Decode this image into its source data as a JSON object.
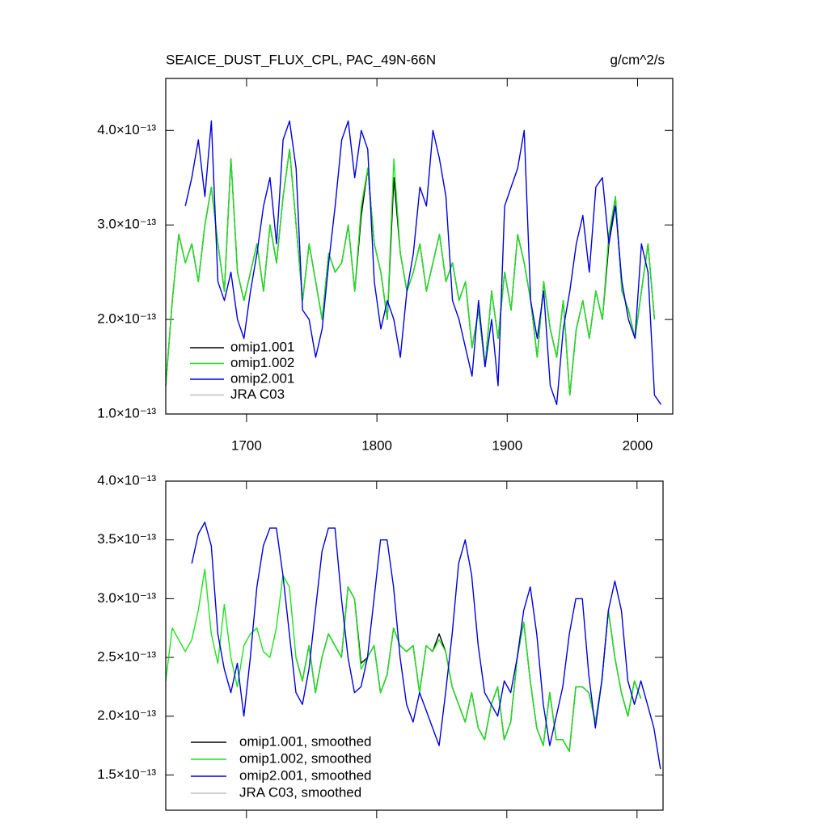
{
  "chart_data": [
    {
      "type": "line",
      "title": "SEAICE_DUST_FLUX_CPL, PAC_49N-66N",
      "units": "g/cm^2/s",
      "x": [
        1638,
        1643,
        1648,
        1653,
        1658,
        1663,
        1668,
        1673,
        1678,
        1683,
        1688,
        1693,
        1698,
        1703,
        1708,
        1713,
        1718,
        1723,
        1728,
        1733,
        1738,
        1743,
        1748,
        1753,
        1758,
        1763,
        1768,
        1773,
        1778,
        1783,
        1788,
        1793,
        1798,
        1803,
        1808,
        1813,
        1818,
        1823,
        1828,
        1833,
        1838,
        1843,
        1848,
        1853,
        1858,
        1863,
        1868,
        1873,
        1878,
        1883,
        1888,
        1893,
        1898,
        1903,
        1908,
        1913,
        1918,
        1923,
        1928,
        1933,
        1938,
        1943,
        1948,
        1953,
        1958,
        1963,
        1968,
        1973,
        1978,
        1983,
        1988,
        1993,
        1998,
        2003,
        2008,
        2013,
        2018
      ],
      "xlim": [
        1638,
        2027
      ],
      "xticks": [
        1700,
        1800,
        1900,
        2000
      ],
      "xtick_labels": true,
      "ylim": [
        1e-13,
        4.55e-13
      ],
      "yticks": [
        {
          "value": 1e-13,
          "label": "1.0×10⁻¹³"
        },
        {
          "value": 2e-13,
          "label": "2.0×10⁻¹³"
        },
        {
          "value": 3e-13,
          "label": "3.0×10⁻¹³"
        },
        {
          "value": 4e-13,
          "label": "4.0×10⁻¹³"
        }
      ],
      "legend": "lower left",
      "series": [
        {
          "name": "omip1.001",
          "color": "#000000",
          "values": [
            1.3e-13,
            2.2e-13,
            2.9e-13,
            2.6e-13,
            2.8e-13,
            2.4e-13,
            3e-13,
            3.4e-13,
            2.8e-13,
            2.3e-13,
            3.7e-13,
            2.5e-13,
            2.2e-13,
            2.5e-13,
            2.8e-13,
            2.3e-13,
            3e-13,
            2.6e-13,
            3.3e-13,
            3.8e-13,
            3e-13,
            2.2e-13,
            2.8e-13,
            2.4e-13,
            2e-13,
            2.7e-13,
            2.5e-13,
            2.6e-13,
            3e-13,
            2.3e-13,
            3.1e-13,
            3.6e-13,
            2.8e-13,
            2.5e-13,
            2e-13,
            3.5e-13,
            2.7e-13,
            2.3e-13,
            2.5e-13,
            2.8e-13,
            2.3e-13,
            2.6e-13,
            2.9e-13,
            2.4e-13,
            2.6e-13,
            2.2e-13,
            2.4e-13,
            1.7e-13,
            2.1e-13,
            1.5e-13,
            2.3e-13,
            1.8e-13,
            2.5e-13,
            2.1e-13,
            2.9e-13,
            2.6e-13,
            2.2e-13,
            1.6e-13,
            2.4e-13,
            1.9e-13,
            1.6e-13,
            2.2e-13,
            1.2e-13,
            1.9e-13,
            2.2e-13,
            1.8e-13,
            2.3e-13,
            2e-13,
            2.8e-13,
            3.3e-13,
            2.3e-13,
            2.1e-13,
            1.8e-13,
            2.3e-13,
            2.8e-13,
            2e-13,
            null
          ]
        },
        {
          "name": "omip1.002",
          "color": "#1ee31e",
          "values": [
            1.3e-13,
            2.2e-13,
            2.9e-13,
            2.6e-13,
            2.8e-13,
            2.4e-13,
            3e-13,
            3.4e-13,
            2.8e-13,
            2.3e-13,
            3.7e-13,
            2.5e-13,
            2.2e-13,
            2.5e-13,
            2.8e-13,
            2.3e-13,
            3e-13,
            2.6e-13,
            3.3e-13,
            3.8e-13,
            3e-13,
            2.2e-13,
            2.8e-13,
            2.4e-13,
            2e-13,
            2.7e-13,
            2.5e-13,
            2.6e-13,
            3e-13,
            2.3e-13,
            3.2e-13,
            3.6e-13,
            2.8e-13,
            2.5e-13,
            2e-13,
            3.7e-13,
            2.7e-13,
            2.3e-13,
            2.5e-13,
            2.8e-13,
            2.3e-13,
            2.6e-13,
            2.9e-13,
            2.4e-13,
            2.6e-13,
            2.2e-13,
            2.4e-13,
            1.7e-13,
            2.1e-13,
            1.5e-13,
            2.3e-13,
            1.8e-13,
            2.5e-13,
            2.1e-13,
            2.9e-13,
            2.6e-13,
            2.2e-13,
            1.6e-13,
            2.4e-13,
            1.9e-13,
            1.6e-13,
            2.2e-13,
            1.2e-13,
            1.9e-13,
            2.2e-13,
            1.8e-13,
            2.3e-13,
            2e-13,
            2.9e-13,
            3.3e-13,
            2.3e-13,
            2.1e-13,
            1.8e-13,
            2.3e-13,
            2.8e-13,
            2e-13,
            null
          ]
        },
        {
          "name": "omip2.001",
          "color": "#0000e0",
          "values": [
            null,
            null,
            null,
            3.2e-13,
            3.5e-13,
            3.9e-13,
            3.3e-13,
            4.1e-13,
            2.4e-13,
            2.2e-13,
            2.5e-13,
            2e-13,
            1.8e-13,
            2.3e-13,
            2.7e-13,
            3.2e-13,
            3.5e-13,
            2.8e-13,
            3.9e-13,
            4.1e-13,
            3.6e-13,
            2.1e-13,
            2e-13,
            1.6e-13,
            1.9e-13,
            2.6e-13,
            3.2e-13,
            3.9e-13,
            4.1e-13,
            3.5e-13,
            4e-13,
            3.8e-13,
            2.4e-13,
            1.9e-13,
            2.2e-13,
            2e-13,
            1.6e-13,
            2.3e-13,
            2.7e-13,
            3.4e-13,
            3.2e-13,
            4e-13,
            3.7e-13,
            3.3e-13,
            2.2e-13,
            2e-13,
            1.7e-13,
            1.4e-13,
            2.2e-13,
            1.5e-13,
            2e-13,
            1.3e-13,
            3.2e-13,
            3.4e-13,
            3.6e-13,
            4e-13,
            2.2e-13,
            1.8e-13,
            2.3e-13,
            1.3e-13,
            1.1e-13,
            1.9e-13,
            2.3e-13,
            2.8e-13,
            3.1e-13,
            2.5e-13,
            3.4e-13,
            3.5e-13,
            2.8e-13,
            3.2e-13,
            2.4e-13,
            2e-13,
            1.8e-13,
            2.8e-13,
            2.5e-13,
            1.2e-13,
            1.1e-13
          ]
        },
        {
          "name": "JRA C03",
          "color": "#c0c0c0",
          "values": [
            null,
            null,
            null,
            null,
            null,
            null,
            null,
            null,
            null,
            null,
            null,
            null,
            null,
            null,
            null,
            null,
            null,
            null,
            null,
            null,
            null,
            null,
            null,
            null,
            null,
            null,
            null,
            null,
            null,
            null,
            null,
            null,
            null,
            null,
            null,
            null,
            null,
            null,
            null,
            null,
            null,
            null,
            null,
            null,
            null,
            null,
            null,
            null,
            null,
            null,
            null,
            null,
            null,
            null,
            null,
            null,
            null,
            null,
            null,
            null,
            null,
            null,
            null,
            null,
            null,
            null,
            null,
            null,
            null,
            null,
            null,
            null,
            null,
            null,
            null,
            null,
            null
          ]
        }
      ]
    },
    {
      "type": "line",
      "x": [
        1638,
        1643,
        1648,
        1653,
        1658,
        1663,
        1668,
        1673,
        1678,
        1683,
        1688,
        1693,
        1698,
        1703,
        1708,
        1713,
        1718,
        1723,
        1728,
        1733,
        1738,
        1743,
        1748,
        1753,
        1758,
        1763,
        1768,
        1773,
        1778,
        1783,
        1788,
        1793,
        1798,
        1803,
        1808,
        1813,
        1818,
        1823,
        1828,
        1833,
        1838,
        1843,
        1848,
        1853,
        1858,
        1863,
        1868,
        1873,
        1878,
        1883,
        1888,
        1893,
        1898,
        1903,
        1908,
        1913,
        1918,
        1923,
        1928,
        1933,
        1938,
        1943,
        1948,
        1953,
        1958,
        1963,
        1968,
        1973,
        1978,
        1983,
        1988,
        1993,
        1998,
        2003,
        2008,
        2013,
        2018
      ],
      "xlim": [
        1638,
        2020
      ],
      "xticks": [
        1700,
        1800,
        1900,
        2000
      ],
      "xtick_labels": false,
      "ylim": [
        1.2e-13,
        4e-13
      ],
      "yticks": [
        {
          "value": 1.5e-13,
          "label": "1.5×10⁻¹³"
        },
        {
          "value": 2e-13,
          "label": "2.0×10⁻¹³"
        },
        {
          "value": 2.5e-13,
          "label": "2.5×10⁻¹³"
        },
        {
          "value": 3e-13,
          "label": "3.0×10⁻¹³"
        },
        {
          "value": 3.5e-13,
          "label": "3.5×10⁻¹³"
        },
        {
          "value": 4e-13,
          "label": "4.0×10⁻¹³"
        }
      ],
      "legend": "lower left",
      "series": [
        {
          "name": "omip1.001, smoothed",
          "color": "#000000",
          "values": [
            null,
            null,
            null,
            null,
            null,
            null,
            null,
            null,
            null,
            null,
            null,
            null,
            null,
            null,
            null,
            null,
            null,
            null,
            null,
            null,
            2.5e-13,
            2.3e-13,
            2.6e-13,
            2.2e-13,
            2.5e-13,
            2.7e-13,
            2.6e-13,
            2.5e-13,
            3.1e-13,
            3e-13,
            2.45e-13,
            2.5e-13,
            2.6e-13,
            2.2e-13,
            2.35e-13,
            2.75e-13,
            2.6e-13,
            2.55e-13,
            2.6e-13,
            2.2e-13,
            2.6e-13,
            2.55e-13,
            2.7e-13,
            2.55e-13,
            2.25e-13,
            2.1e-13,
            1.95e-13,
            2.2e-13,
            1.9e-13,
            1.8e-13,
            2.1e-13,
            2.25e-13,
            1.8e-13,
            1.95e-13,
            2.5e-13,
            2.8e-13,
            2.3e-13,
            1.9e-13,
            1.75e-13,
            2.2e-13,
            1.8e-13,
            1.8e-13,
            1.7e-13,
            2.25e-13,
            2.25e-13,
            2.2e-13,
            1.95e-13,
            2.3e-13,
            2.9e-13,
            2.5e-13,
            2.2e-13,
            2e-13,
            2.3e-13,
            2.15e-13,
            null,
            null,
            null
          ]
        },
        {
          "name": "omip1.002, smoothed",
          "color": "#1ee31e",
          "values": [
            2.3e-13,
            2.75e-13,
            2.65e-13,
            2.55e-13,
            2.65e-13,
            2.9e-13,
            3.25e-13,
            2.7e-13,
            2.45e-13,
            2.95e-13,
            2.5e-13,
            2.25e-13,
            2.6e-13,
            2.7e-13,
            2.75e-13,
            2.55e-13,
            2.5e-13,
            2.75e-13,
            3.2e-13,
            3.1e-13,
            2.5e-13,
            2.3e-13,
            2.6e-13,
            2.2e-13,
            2.5e-13,
            2.7e-13,
            2.6e-13,
            2.5e-13,
            3.1e-13,
            3e-13,
            2.4e-13,
            2.5e-13,
            2.6e-13,
            2.2e-13,
            2.35e-13,
            2.75e-13,
            2.6e-13,
            2.55e-13,
            2.6e-13,
            2.2e-13,
            2.6e-13,
            2.55e-13,
            2.65e-13,
            2.55e-13,
            2.25e-13,
            2.1e-13,
            1.95e-13,
            2.2e-13,
            1.9e-13,
            1.8e-13,
            2.1e-13,
            2.25e-13,
            1.8e-13,
            1.95e-13,
            2.5e-13,
            2.8e-13,
            2.3e-13,
            1.9e-13,
            1.75e-13,
            2.2e-13,
            1.8e-13,
            1.8e-13,
            1.7e-13,
            2.25e-13,
            2.25e-13,
            2.2e-13,
            1.95e-13,
            2.3e-13,
            2.9e-13,
            2.5e-13,
            2.2e-13,
            2e-13,
            2.3e-13,
            2.15e-13,
            null,
            null,
            null
          ]
        },
        {
          "name": "omip2.001, smoothed",
          "color": "#0000e0",
          "values": [
            null,
            null,
            null,
            null,
            3.3e-13,
            3.55e-13,
            3.65e-13,
            3.45e-13,
            2.7e-13,
            2.4e-13,
            2.2e-13,
            2.45e-13,
            2e-13,
            2.5e-13,
            3.1e-13,
            3.45e-13,
            3.6e-13,
            3.6e-13,
            3.2e-13,
            2.7e-13,
            2.2e-13,
            2.1e-13,
            2.4e-13,
            2.9e-13,
            3.4e-13,
            3.6e-13,
            3.6e-13,
            3e-13,
            2.5e-13,
            2.2e-13,
            2.25e-13,
            2.5e-13,
            3e-13,
            3.5e-13,
            3.5e-13,
            3.1e-13,
            2.5e-13,
            2.1e-13,
            1.95e-13,
            2.2e-13,
            2.05e-13,
            1.9e-13,
            1.75e-13,
            2.2e-13,
            2.7e-13,
            3.3e-13,
            3.5e-13,
            3.2e-13,
            2.6e-13,
            2.2e-13,
            2.1e-13,
            2e-13,
            2.3e-13,
            2.2e-13,
            2.5e-13,
            2.9e-13,
            3.1e-13,
            2.7e-13,
            2.1e-13,
            1.75e-13,
            2e-13,
            2.25e-13,
            2.7e-13,
            3e-13,
            3e-13,
            2.35e-13,
            1.9e-13,
            2.3e-13,
            2.9e-13,
            3.15e-13,
            2.9e-13,
            2.3e-13,
            2.1e-13,
            2.3e-13,
            2.1e-13,
            1.9e-13,
            1.55e-13
          ]
        },
        {
          "name": "JRA C03, smoothed",
          "color": "#c0c0c0",
          "values": [
            null,
            null,
            null,
            null,
            null,
            null,
            null,
            null,
            null,
            null,
            null,
            null,
            null,
            null,
            null,
            null,
            null,
            null,
            null,
            null,
            null,
            null,
            null,
            null,
            null,
            null,
            null,
            null,
            null,
            null,
            null,
            null,
            null,
            null,
            null,
            null,
            null,
            null,
            null,
            null,
            null,
            null,
            null,
            null,
            null,
            null,
            null,
            null,
            null,
            null,
            null,
            null,
            null,
            null,
            null,
            null,
            null,
            null,
            null,
            null,
            null,
            null,
            null,
            null,
            null,
            null,
            null,
            null,
            null,
            null,
            null,
            null,
            null,
            null,
            null,
            null,
            null
          ]
        }
      ]
    }
  ]
}
